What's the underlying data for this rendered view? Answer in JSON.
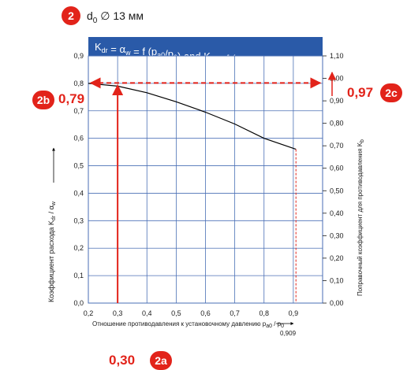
{
  "header": {
    "badge": "2",
    "label_main": "d",
    "label_sub": "0",
    "label_rest": " ∅ 13 мм"
  },
  "colors": {
    "badge_red": "#e2231a",
    "title_bar": "#2a5aa8",
    "grid": "#4a6fb5",
    "curve": "#000000",
    "guide": "#e2231a"
  },
  "callouts": {
    "left_badge": "2b",
    "left_value": "0,79",
    "right_badge": "2c",
    "right_value": "0,97",
    "bottom_badge": "2a",
    "bottom_value": "0,30",
    "x_marker_label": "0,909"
  },
  "chart_data": {
    "type": "line",
    "title": {
      "main": "K",
      "parts": [
        {
          "text": "K",
          "sub": "dr"
        },
        {
          "text": " = α",
          "sub": "w"
        },
        {
          "text": " = f (p",
          "sub": "a0"
        },
        {
          "text": "/p",
          "sub": "0"
        },
        {
          "text": ") and K",
          "sub": "b"
        },
        {
          "text": " = f (p",
          "sub": "a0"
        },
        {
          "text": "/p",
          "sub": "0"
        },
        {
          "text": ")",
          "sub": ""
        }
      ]
    },
    "xlabel": "Отношение противодавления к установочному давлению p",
    "xlabel_sub1": "a0",
    "xlabel_mid": " / p",
    "xlabel_sub2": "0",
    "ylabel_left": "Коэффициент расхода  K",
    "ylabel_left_sub1": "dr",
    "ylabel_left_mid": " / α",
    "ylabel_left_sub2": "w",
    "ylabel_right": "Поправочный коэффициент для противодавления  K",
    "ylabel_right_sub": "b",
    "xlim": [
      0.2,
      1.0
    ],
    "ylim_left": [
      0.0,
      0.9
    ],
    "ylim_right": [
      0.0,
      1.1
    ],
    "x_ticks": [
      "0,2",
      "0,3",
      "0,4",
      "0,5",
      "0,6",
      "0,7",
      "0,8",
      "0,9"
    ],
    "x_tick_values": [
      0.2,
      0.3,
      0.4,
      0.5,
      0.6,
      0.7,
      0.8,
      0.9
    ],
    "y_left_ticks": [
      "0,0",
      "0,1",
      "0,2",
      "0,3",
      "0,4",
      "0,5",
      "0,6",
      "0,7",
      "0,8",
      "0,9"
    ],
    "y_left_tick_values": [
      0.0,
      0.1,
      0.2,
      0.3,
      0.4,
      0.5,
      0.6,
      0.7,
      0.8,
      0.9
    ],
    "y_right_ticks": [
      "0,00",
      "0,10",
      "0,20",
      "0,30",
      "0,40",
      "0,50",
      "0,60",
      "0,70",
      "0,80",
      "0,90",
      "1,00",
      "1,10"
    ],
    "y_right_tick_values": [
      0.0,
      0.1,
      0.2,
      0.3,
      0.4,
      0.5,
      0.6,
      0.7,
      0.8,
      0.9,
      1.0,
      1.1
    ],
    "grid": true,
    "series": [
      {
        "x": [
          0.2,
          0.3,
          0.4,
          0.5,
          0.6,
          0.7,
          0.8,
          0.909
        ],
        "y": [
          0.8,
          0.79,
          0.766,
          0.733,
          0.695,
          0.652,
          0.6,
          0.56
        ]
      }
    ],
    "annotations": {
      "x_value": 0.3,
      "curve_y_at_x": 0.79,
      "right_axis_value": 0.97,
      "x_end_marker": 0.909
    }
  }
}
